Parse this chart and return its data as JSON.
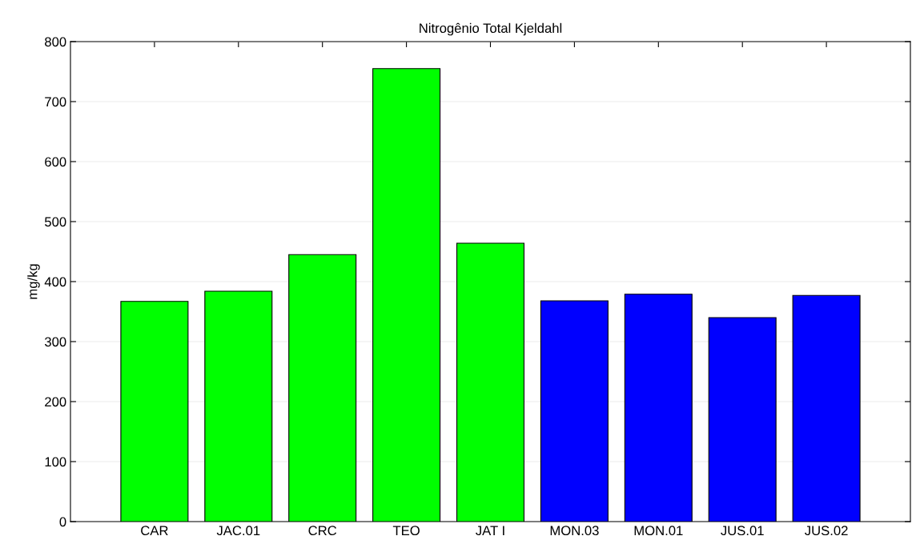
{
  "chart_data": {
    "type": "bar",
    "title": "Nitrogênio Total Kjeldahl",
    "ylabel": "mg/kg",
    "categories": [
      "CAR",
      "JAC.01",
      "CRC",
      "TEO",
      "JAT I",
      "MON.03",
      "MON.01",
      "JUS.01",
      "JUS.02"
    ],
    "values": [
      367,
      384,
      445,
      755,
      464,
      368,
      379,
      340,
      377
    ],
    "colors": [
      "#00ff00",
      "#00ff00",
      "#00ff00",
      "#00ff00",
      "#00ff00",
      "#0000ff",
      "#0000ff",
      "#0000ff",
      "#0000ff"
    ],
    "ylim": [
      0,
      800
    ],
    "yticks": [
      0,
      100,
      200,
      300,
      400,
      500,
      600,
      700,
      800
    ],
    "grid": "y"
  }
}
